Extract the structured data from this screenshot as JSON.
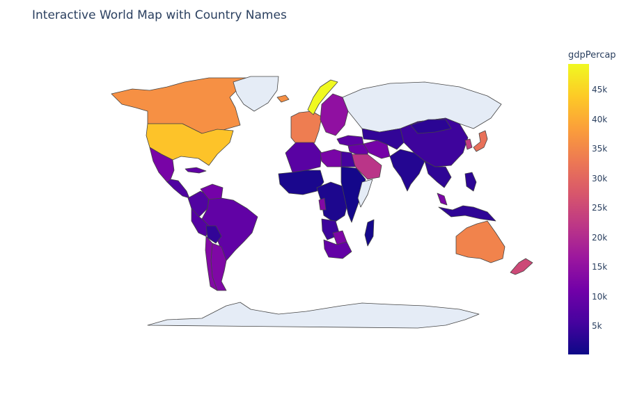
{
  "title": "Interactive World Map with Country Names",
  "colorbar": {
    "title": "gdpPercap",
    "colorscale": [
      "#0d0887",
      "#46039f",
      "#7201a8",
      "#9c179e",
      "#bd3786",
      "#d8576b",
      "#ed7953",
      "#fb9f3a",
      "#fdca26",
      "#f0f921"
    ],
    "range": [
      241,
      49357
    ],
    "ticks": [
      {
        "label": "45k",
        "value": 45000
      },
      {
        "label": "40k",
        "value": 40000
      },
      {
        "label": "35k",
        "value": 35000
      },
      {
        "label": "30k",
        "value": 30000
      },
      {
        "label": "25k",
        "value": 25000
      },
      {
        "label": "20k",
        "value": 20000
      },
      {
        "label": "15k",
        "value": 15000
      },
      {
        "label": "10k",
        "value": 10000
      },
      {
        "label": "5k",
        "value": 5000
      }
    ]
  },
  "no_data_color": "#e5ecf6",
  "regions": [
    {
      "name": "Canada",
      "value": 36300
    },
    {
      "name": "United States",
      "value": 42950
    },
    {
      "name": "Mexico",
      "value": 11980
    },
    {
      "name": "Central America",
      "value": 6800
    },
    {
      "name": "Cuba",
      "value": 8950
    },
    {
      "name": "Greenland",
      "value": null
    },
    {
      "name": "Iceland",
      "value": 36200
    },
    {
      "name": "Colombia",
      "value": 7010
    },
    {
      "name": "Venezuela",
      "value": 11420
    },
    {
      "name": "Brazil",
      "value": 9070
    },
    {
      "name": "Peru",
      "value": 7410
    },
    {
      "name": "Bolivia",
      "value": 3820
    },
    {
      "name": "Argentina",
      "value": 12780
    },
    {
      "name": "Chile",
      "value": 13170
    },
    {
      "name": "Western Europe",
      "value": 33500
    },
    {
      "name": "Norway",
      "value": 49357
    },
    {
      "name": "Eastern Europe",
      "value": 15000
    },
    {
      "name": "Russia",
      "value": null
    },
    {
      "name": "Turkey",
      "value": 8460
    },
    {
      "name": "Middle East",
      "value": 10000
    },
    {
      "name": "Saudi Arabia",
      "value": 21650
    },
    {
      "name": "Iran",
      "value": 11600
    },
    {
      "name": "Central Asia",
      "value": 3800
    },
    {
      "name": "India",
      "value": 2450
    },
    {
      "name": "China",
      "value": 4960
    },
    {
      "name": "Mongolia",
      "value": 3100
    },
    {
      "name": "Japan",
      "value": 31650
    },
    {
      "name": "South Korea",
      "value": 23350
    },
    {
      "name": "Southeast Asia",
      "value": 3500
    },
    {
      "name": "Malaysia",
      "value": 12450
    },
    {
      "name": "Indonesia",
      "value": 3540
    },
    {
      "name": "Philippines",
      "value": 3190
    },
    {
      "name": "Australia",
      "value": 34440
    },
    {
      "name": "New Zealand",
      "value": 25180
    },
    {
      "name": "North Africa",
      "value": 8000
    },
    {
      "name": "Libya",
      "value": 12060
    },
    {
      "name": "Egypt",
      "value": 5580
    },
    {
      "name": "West Africa",
      "value": 1500
    },
    {
      "name": "Central Africa",
      "value": 1800
    },
    {
      "name": "East Africa",
      "value": 900
    },
    {
      "name": "Somalia",
      "value": null
    },
    {
      "name": "Gabon",
      "value": 13200
    },
    {
      "name": "Angola",
      "value": 4800
    },
    {
      "name": "Botswana",
      "value": 12570
    },
    {
      "name": "South Africa",
      "value": 9270
    },
    {
      "name": "Madagascar",
      "value": 1040
    },
    {
      "name": "Antarctica",
      "value": null
    }
  ]
}
